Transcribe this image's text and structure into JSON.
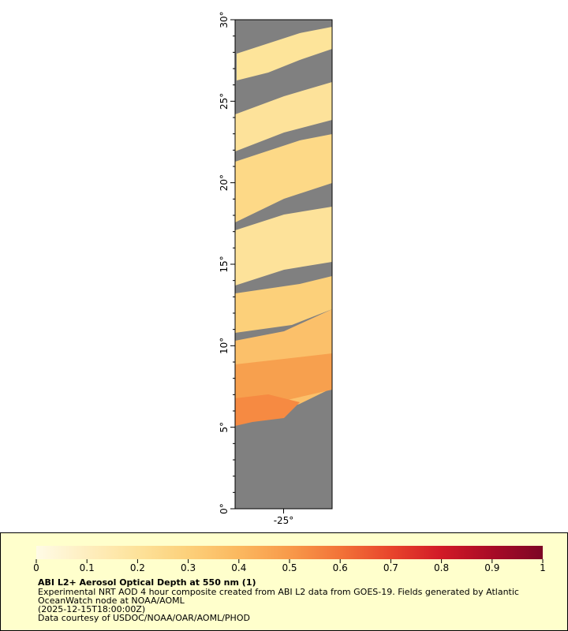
{
  "map": {
    "ylim": [
      0,
      30
    ],
    "xlim": [
      -28,
      -22
    ],
    "yticks": [
      {
        "value": 0,
        "label": "0°"
      },
      {
        "value": 5,
        "label": "5°"
      },
      {
        "value": 10,
        "label": "10°"
      },
      {
        "value": 15,
        "label": "15°"
      },
      {
        "value": 20,
        "label": "20°"
      },
      {
        "value": 25,
        "label": "25°"
      },
      {
        "value": 30,
        "label": "30°"
      }
    ],
    "yminor": [
      1,
      2,
      3,
      4,
      6,
      7,
      8,
      9,
      11,
      12,
      13,
      14,
      16,
      17,
      18,
      19,
      21,
      22,
      23,
      24,
      26,
      27,
      28,
      29
    ],
    "xticks": [
      {
        "value": -25,
        "label": "-25°"
      }
    ]
  },
  "colorbar": {
    "lim": [
      0,
      1
    ],
    "ticks": [
      0,
      0.1,
      0.2,
      0.3,
      0.4,
      0.5,
      0.6,
      0.7,
      0.8,
      0.9,
      1
    ],
    "colors": [
      "#fffbe6",
      "#feeebf",
      "#fde29a",
      "#fcd07a",
      "#fbb85f",
      "#f89a4a",
      "#f27338",
      "#e8452c",
      "#d11a27",
      "#a80b26",
      "#7d0625"
    ]
  },
  "legend": {
    "title": "ABI L2+ Aerosol Optical Depth at 550 nm (1)",
    "lines": [
      "Experimental NRT AOD 4 hour composite created from ABI L2 data from GOES-19. Fields generated by Atlantic",
      "OceanWatch node at NOAA/AOML",
      "(2025-12-15T18:00:00Z)",
      "Data courtesy of USDOC/NOAA/OAR/AOML/PHOD"
    ]
  }
}
